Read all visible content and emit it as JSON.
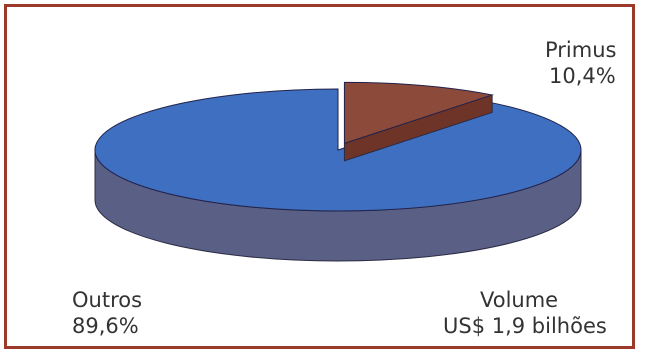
{
  "chart_data": {
    "type": "pie",
    "style": "3d-exploded",
    "slices": [
      {
        "name": "Primus",
        "value": 10.4,
        "value_label": "10,4%",
        "color": "#8b4a3a",
        "exploded": true
      },
      {
        "name": "Outros",
        "value": 89.6,
        "value_label": "89,6%",
        "color": "#3f6fc0",
        "exploded": false
      }
    ],
    "side_colors": {
      "Primus": "#6e3428",
      "Outros": "#5a5f86"
    },
    "frame_color": "#9b3a2a",
    "annotation": {
      "line1": "Volume",
      "line2": "US$ 1,9 bilhões"
    }
  }
}
